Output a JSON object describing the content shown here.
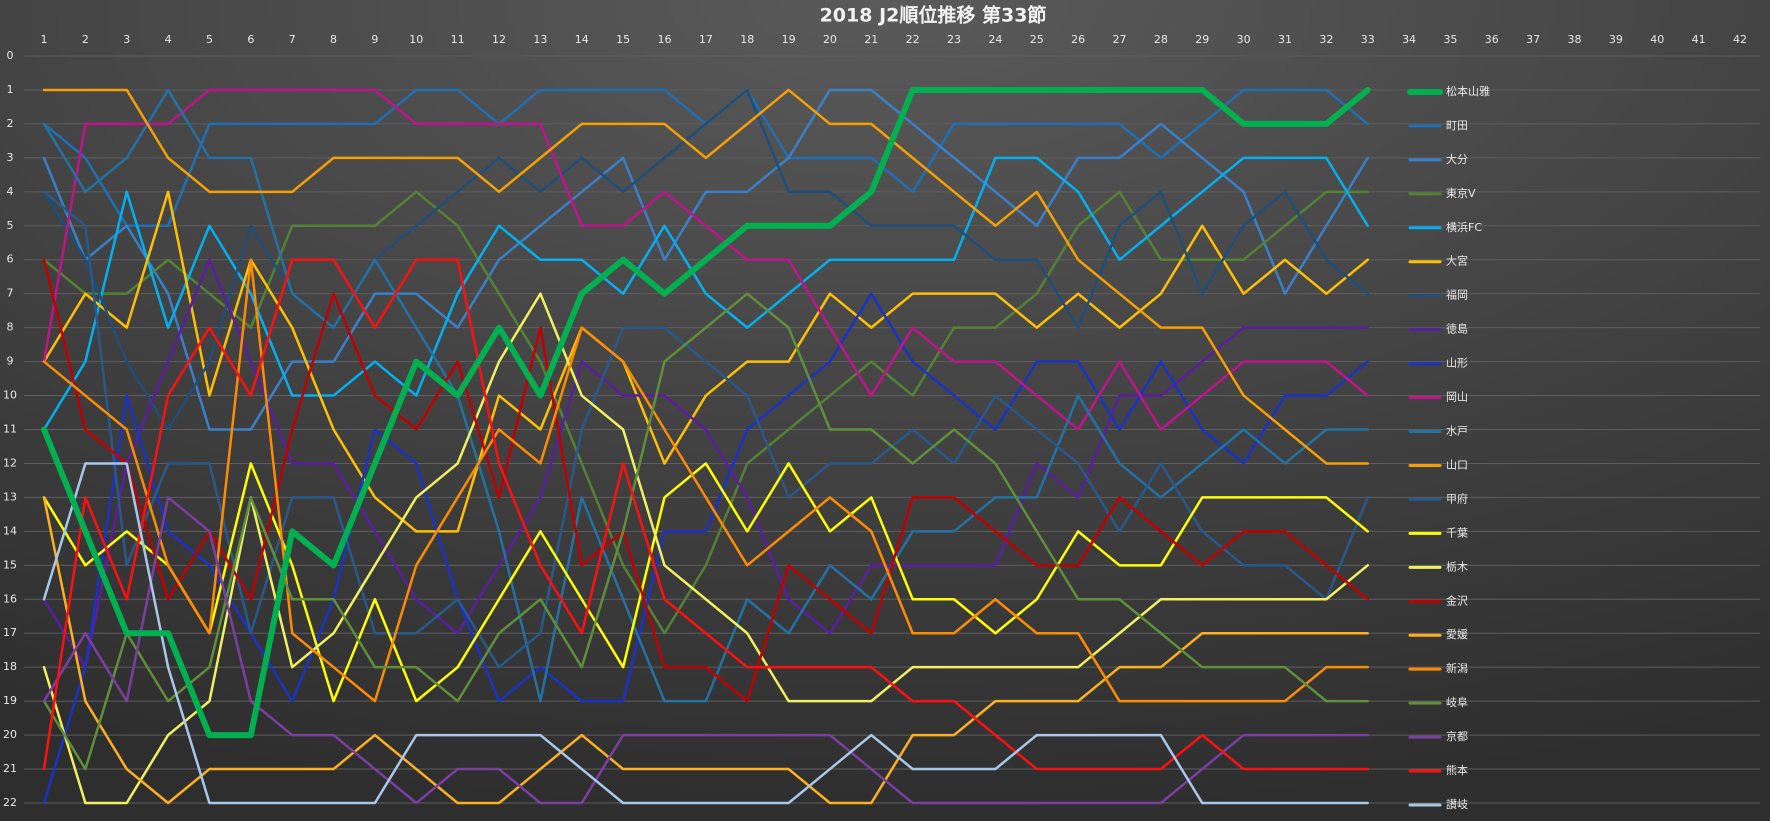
{
  "chart_data": {
    "type": "line",
    "title": "2018 J2順位推移 第33節",
    "x": [
      1,
      2,
      3,
      4,
      5,
      6,
      7,
      8,
      9,
      10,
      11,
      12,
      13,
      14,
      15,
      16,
      17,
      18,
      19,
      20,
      21,
      22,
      23,
      24,
      25,
      26,
      27,
      28,
      29,
      30,
      31,
      32,
      33
    ],
    "xlim": [
      1,
      42
    ],
    "xticks": [
      1,
      2,
      3,
      4,
      5,
      6,
      7,
      8,
      9,
      10,
      11,
      12,
      13,
      14,
      15,
      16,
      17,
      18,
      19,
      20,
      21,
      22,
      23,
      24,
      25,
      26,
      27,
      28,
      29,
      30,
      31,
      32,
      33,
      34,
      35,
      36,
      37,
      38,
      39,
      40,
      41,
      42
    ],
    "ylim": [
      22,
      0
    ],
    "yticks": [
      0,
      1,
      2,
      3,
      4,
      5,
      6,
      7,
      8,
      9,
      10,
      11,
      12,
      13,
      14,
      15,
      16,
      17,
      18,
      19,
      20,
      21,
      22
    ],
    "grid": true,
    "legend": "right",
    "series": [
      {
        "name": "松本山雅",
        "color": "#00b050",
        "line_width": 6,
        "values": [
          11,
          14,
          17,
          17,
          20,
          20,
          14,
          15,
          12,
          9,
          10,
          8,
          10,
          7,
          6,
          7,
          6,
          5,
          5,
          5,
          4,
          1,
          1,
          1,
          1,
          1,
          1,
          1,
          1,
          2,
          2,
          2,
          1
        ]
      },
      {
        "name": "町田",
        "color": "#1f6fb5",
        "line_width": 2.5,
        "values": [
          2,
          3,
          5,
          5,
          2,
          2,
          2,
          2,
          2,
          1,
          1,
          2,
          1,
          1,
          1,
          1,
          2,
          1,
          3,
          3,
          3,
          4,
          2,
          2,
          2,
          2,
          2,
          3,
          2,
          1,
          1,
          1,
          2
        ]
      },
      {
        "name": "大分",
        "color": "#3a80c8",
        "line_width": 2.5,
        "values": [
          3,
          6,
          5,
          7,
          11,
          11,
          9,
          9,
          7,
          7,
          8,
          6,
          5,
          4,
          3,
          6,
          4,
          4,
          3,
          1,
          1,
          2,
          3,
          4,
          5,
          3,
          3,
          2,
          3,
          4,
          7,
          5,
          3
        ]
      },
      {
        "name": "東京V",
        "color": "#548235",
        "line_width": 2.5,
        "values": [
          6,
          7,
          7,
          6,
          7,
          8,
          5,
          5,
          5,
          4,
          5,
          7,
          9,
          12,
          15,
          17,
          15,
          12,
          11,
          10,
          9,
          10,
          8,
          8,
          7,
          5,
          4,
          6,
          6,
          6,
          5,
          4,
          4
        ]
      },
      {
        "name": "横浜FC",
        "color": "#00b0f0",
        "line_width": 2.5,
        "values": [
          11,
          9,
          4,
          8,
          5,
          7,
          10,
          10,
          9,
          10,
          7,
          5,
          6,
          6,
          7,
          5,
          7,
          8,
          7,
          6,
          6,
          6,
          6,
          3,
          3,
          4,
          6,
          5,
          4,
          3,
          3,
          3,
          5
        ]
      },
      {
        "name": "大宮",
        "color": "#ffc000",
        "line_width": 2.5,
        "values": [
          9,
          7,
          8,
          4,
          10,
          6,
          8,
          11,
          13,
          14,
          14,
          10,
          11,
          8,
          9,
          12,
          10,
          9,
          9,
          7,
          8,
          7,
          7,
          7,
          8,
          7,
          8,
          7,
          5,
          7,
          6,
          7,
          6
        ]
      },
      {
        "name": "福岡",
        "color": "#1f4e79",
        "line_width": 2.5,
        "values": [
          4,
          6,
          9,
          11,
          9,
          5,
          7,
          8,
          6,
          5,
          4,
          3,
          4,
          3,
          4,
          3,
          2,
          1,
          4,
          4,
          5,
          5,
          5,
          6,
          6,
          8,
          5,
          4,
          7,
          5,
          4,
          6,
          7
        ]
      },
      {
        "name": "徳島",
        "color": "#5a1fa0",
        "line_width": 2.5,
        "values": [
          16,
          18,
          12,
          9,
          6,
          9,
          12,
          12,
          14,
          16,
          17,
          15,
          13,
          9,
          10,
          10,
          11,
          13,
          16,
          17,
          15,
          15,
          15,
          15,
          12,
          13,
          10,
          10,
          9,
          8,
          8,
          8,
          8
        ]
      },
      {
        "name": "山形",
        "color": "#1a33c4",
        "line_width": 2.5,
        "values": [
          22,
          18,
          10,
          14,
          15,
          17,
          19,
          16,
          11,
          12,
          16,
          19,
          18,
          19,
          19,
          14,
          14,
          11,
          10,
          9,
          7,
          9,
          10,
          11,
          9,
          9,
          11,
          9,
          11,
          12,
          10,
          10,
          9
        ]
      },
      {
        "name": "岡山",
        "color": "#c0148c",
        "line_width": 2.5,
        "values": [
          9,
          2,
          2,
          2,
          1,
          1,
          1,
          1,
          1,
          2,
          2,
          2,
          2,
          5,
          5,
          4,
          5,
          6,
          6,
          8,
          10,
          8,
          9,
          9,
          10,
          11,
          9,
          11,
          10,
          9,
          9,
          9,
          10
        ]
      },
      {
        "name": "水戸",
        "color": "#2471a3",
        "line_width": 2.5,
        "values": [
          2,
          4,
          3,
          1,
          3,
          3,
          7,
          8,
          6,
          8,
          10,
          14,
          19,
          13,
          16,
          19,
          19,
          16,
          17,
          15,
          16,
          14,
          14,
          13,
          13,
          10,
          12,
          13,
          12,
          11,
          12,
          11,
          11
        ]
      },
      {
        "name": "山口",
        "color": "#f5a000",
        "line_width": 2.5,
        "values": [
          1,
          1,
          1,
          3,
          4,
          4,
          4,
          3,
          3,
          3,
          3,
          4,
          3,
          2,
          2,
          2,
          3,
          2,
          1,
          2,
          2,
          3,
          4,
          5,
          4,
          6,
          7,
          8,
          8,
          10,
          11,
          12,
          12
        ]
      },
      {
        "name": "甲府",
        "color": "#28598a",
        "line_width": 2.5,
        "values": [
          4,
          5,
          15,
          12,
          12,
          17,
          13,
          13,
          17,
          17,
          16,
          18,
          17,
          11,
          8,
          8,
          9,
          10,
          13,
          12,
          12,
          11,
          12,
          10,
          11,
          12,
          14,
          12,
          14,
          15,
          15,
          16,
          13
        ]
      },
      {
        "name": "千葉",
        "color": "#ffff00",
        "line_width": 2.5,
        "values": [
          13,
          15,
          14,
          15,
          17,
          12,
          15,
          19,
          16,
          19,
          18,
          16,
          14,
          16,
          18,
          13,
          12,
          14,
          12,
          14,
          13,
          16,
          16,
          17,
          16,
          14,
          15,
          15,
          13,
          13,
          13,
          13,
          14
        ]
      },
      {
        "name": "栃木",
        "color": "#f0f060",
        "line_width": 2.5,
        "values": [
          18,
          22,
          22,
          20,
          19,
          13,
          18,
          17,
          15,
          13,
          12,
          9,
          7,
          10,
          11,
          15,
          16,
          17,
          19,
          19,
          19,
          18,
          18,
          18,
          18,
          18,
          17,
          16,
          16,
          16,
          16,
          16,
          15
        ]
      },
      {
        "name": "金沢",
        "color": "#c00000",
        "line_width": 2.5,
        "values": [
          6,
          11,
          12,
          16,
          14,
          16,
          11,
          7,
          10,
          11,
          9,
          13,
          8,
          15,
          14,
          18,
          18,
          19,
          15,
          16,
          17,
          13,
          13,
          14,
          15,
          15,
          13,
          14,
          15,
          14,
          14,
          15,
          16
        ]
      },
      {
        "name": "愛媛",
        "color": "#ffb020",
        "line_width": 2.5,
        "values": [
          13,
          19,
          21,
          22,
          21,
          21,
          21,
          21,
          20,
          21,
          22,
          22,
          21,
          20,
          21,
          21,
          21,
          21,
          21,
          22,
          22,
          20,
          20,
          19,
          19,
          19,
          18,
          18,
          17,
          17,
          17,
          17,
          17
        ]
      },
      {
        "name": "新潟",
        "color": "#ff8c00",
        "line_width": 2.5,
        "values": [
          9,
          10,
          11,
          15,
          17,
          6,
          17,
          18,
          19,
          15,
          13,
          11,
          12,
          8,
          9,
          11,
          13,
          15,
          14,
          13,
          14,
          17,
          17,
          16,
          17,
          17,
          19,
          19,
          19,
          19,
          19,
          18,
          18
        ]
      },
      {
        "name": "岐阜",
        "color": "#5f8f3a",
        "line_width": 2.5,
        "values": [
          19,
          21,
          17,
          19,
          18,
          13,
          16,
          16,
          18,
          18,
          19,
          17,
          16,
          18,
          14,
          9,
          8,
          7,
          8,
          11,
          11,
          12,
          11,
          12,
          14,
          16,
          16,
          17,
          18,
          18,
          18,
          19,
          19
        ]
      },
      {
        "name": "京都",
        "color": "#7b3fa0",
        "line_width": 2.5,
        "values": [
          19,
          17,
          19,
          13,
          14,
          19,
          20,
          20,
          21,
          22,
          21,
          21,
          22,
          22,
          20,
          20,
          20,
          20,
          20,
          20,
          21,
          22,
          22,
          22,
          22,
          22,
          22,
          22,
          21,
          20,
          20,
          20,
          20
        ]
      },
      {
        "name": "熊本",
        "color": "#ff1010",
        "line_width": 2.5,
        "values": [
          21,
          13,
          16,
          10,
          8,
          10,
          6,
          6,
          8,
          6,
          6,
          12,
          15,
          17,
          12,
          16,
          17,
          18,
          18,
          18,
          18,
          19,
          19,
          20,
          21,
          21,
          21,
          21,
          20,
          21,
          21,
          21,
          21
        ]
      },
      {
        "name": "讃岐",
        "color": "#a8c8ea",
        "line_width": 2.5,
        "values": [
          16,
          12,
          12,
          18,
          22,
          22,
          22,
          22,
          22,
          20,
          20,
          20,
          20,
          21,
          22,
          22,
          22,
          22,
          22,
          21,
          20,
          21,
          21,
          21,
          20,
          20,
          20,
          20,
          22,
          22,
          22,
          22,
          22
        ]
      }
    ]
  }
}
